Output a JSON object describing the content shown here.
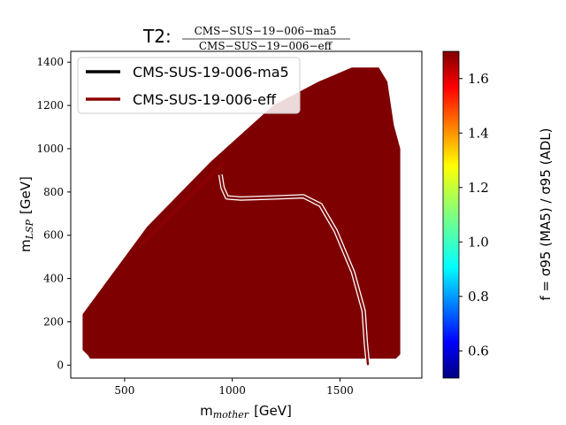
{
  "chart_data": {
    "type": "heatmap",
    "title": {
      "prefix": "T2:",
      "numerator": "CMS−SUS−19−006−ma5",
      "denominator": "CMS−SUS−19−006−eff"
    },
    "xlabel": {
      "main": "m",
      "sub": "mother",
      "unit": "[GeV]"
    },
    "ylabel": {
      "main": "m",
      "sub": "LSP",
      "unit": "[GeV]"
    },
    "xlim": [
      250,
      1880
    ],
    "ylim": [
      -60,
      1450
    ],
    "x_ticks": [
      500,
      1000,
      1500
    ],
    "y_ticks": [
      0,
      200,
      400,
      600,
      800,
      1000,
      1200,
      1400
    ],
    "grid": false,
    "legend_position": "top-left",
    "legend": [
      {
        "label": "CMS-SUS-19-006-ma5",
        "color": "#000000"
      },
      {
        "label": "CMS-SUS-19-006-eff",
        "color": "#8b0000"
      }
    ],
    "colorbar": {
      "label": "f = σ95 (MA5) / σ95 (ADL)",
      "min": 0.5,
      "max": 1.7,
      "ticks": [
        0.6,
        0.8,
        1.0,
        1.2,
        1.4,
        1.6
      ],
      "colormap": "jet"
    },
    "fill_color": "#7f0000",
    "region_outline": [
      [
        305,
        235
      ],
      [
        305,
        70
      ],
      [
        330,
        45
      ],
      [
        340,
        30
      ],
      [
        1760,
        30
      ],
      [
        1780,
        50
      ],
      [
        1780,
        1000
      ],
      [
        1750,
        1110
      ],
      [
        1720,
        1310
      ],
      [
        1680,
        1375
      ],
      [
        1555,
        1375
      ],
      [
        1400,
        1310
      ],
      [
        1190,
        1200
      ],
      [
        900,
        940
      ],
      [
        605,
        640
      ],
      [
        305,
        235
      ]
    ],
    "eff_exclusion_contour": [
      [
        580,
        560
      ],
      [
        960,
        935
      ]
    ],
    "ratio_contour": [
      [
        945,
        880
      ],
      [
        955,
        820
      ],
      [
        975,
        775
      ],
      [
        1040,
        770
      ],
      [
        1200,
        775
      ],
      [
        1330,
        780
      ],
      [
        1410,
        740
      ],
      [
        1480,
        620
      ],
      [
        1560,
        430
      ],
      [
        1610,
        250
      ],
      [
        1620,
        100
      ],
      [
        1630,
        0
      ]
    ]
  }
}
